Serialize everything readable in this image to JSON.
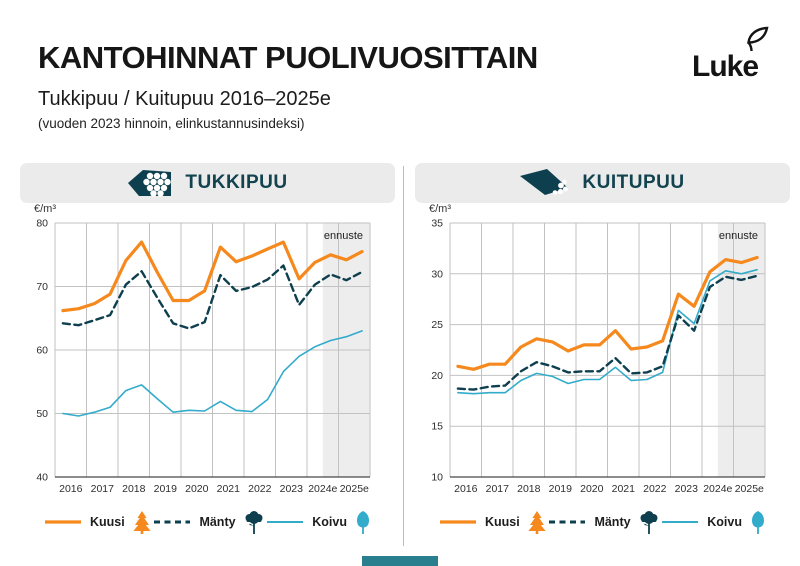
{
  "page": {
    "title": "KANTOHINNAT PUOLIVUOSITTAIN",
    "subtitle": "Tukkipuu / Kuitupuu 2016–2025e",
    "note": "(vuoden 2023 hinnoin, elinkustannusindeksi)",
    "logo_text": "Luke"
  },
  "colors": {
    "kuusi": "#F5891E",
    "manty": "#0E3F4E",
    "koivu": "#33ABCB",
    "panel_header_bg": "#EBEBEB",
    "panel_header_text": "#12434F",
    "forecast_bg": "#EDEDED",
    "grid": "#C2C2C2",
    "axis": "#474747",
    "footer_bar": "#2A7F8E",
    "logo_ink": "#141414"
  },
  "legend": {
    "items": [
      {
        "label": "Kuusi",
        "key": "kuusi",
        "icon": "spruce-tree-icon",
        "line": "solid"
      },
      {
        "label": "Mänty",
        "key": "manty",
        "icon": "pine-tree-icon",
        "line": "dashed"
      },
      {
        "label": "Koivu",
        "key": "koivu",
        "icon": "birch-tree-icon",
        "line": "solid"
      }
    ]
  },
  "chart_data": [
    {
      "type": "line",
      "title": "TUKKIPUU",
      "unit_label": "€/m³",
      "forecast_label": "ennuste",
      "x_tick_labels": [
        "2016",
        "2017",
        "2018",
        "2019",
        "2020",
        "2021",
        "2022",
        "2023",
        "2024e",
        "2025e"
      ],
      "points_per_year": 2,
      "y_ticks": [
        40,
        50,
        60,
        70,
        80
      ],
      "ylim": [
        40,
        80
      ],
      "grid": true,
      "forecast_start_fraction": 0.85,
      "series": [
        {
          "name": "Kuusi",
          "key": "kuusi",
          "color": "#F5891E",
          "line": "solid",
          "width": 3.2,
          "values": [
            66.2,
            66.5,
            67.3,
            68.8,
            74.1,
            77.0,
            72.2,
            67.8,
            67.8,
            69.3,
            76.2,
            73.9,
            74.8,
            75.9,
            77.0,
            71.2,
            73.8,
            75.0,
            74.2,
            75.5
          ]
        },
        {
          "name": "Mänty",
          "key": "manty",
          "color": "#0E3F4E",
          "line": "dashed",
          "width": 2.4,
          "values": [
            64.2,
            63.9,
            64.7,
            65.5,
            70.3,
            72.4,
            68.2,
            64.2,
            63.4,
            64.4,
            71.8,
            69.3,
            69.9,
            71.1,
            73.3,
            67.1,
            70.3,
            71.9,
            71.0,
            72.3
          ]
        },
        {
          "name": "Koivu",
          "key": "koivu",
          "color": "#33ABCB",
          "line": "solid",
          "width": 1.6,
          "values": [
            50.0,
            49.6,
            50.2,
            51.0,
            53.6,
            54.5,
            52.3,
            50.2,
            50.5,
            50.4,
            51.9,
            50.5,
            50.3,
            52.2,
            56.6,
            59.0,
            60.5,
            61.5,
            62.1,
            63.0
          ]
        }
      ]
    },
    {
      "type": "line",
      "title": "KUITUPUU",
      "unit_label": "€/m³",
      "forecast_label": "ennuste",
      "x_tick_labels": [
        "2016",
        "2017",
        "2018",
        "2019",
        "2020",
        "2021",
        "2022",
        "2023",
        "2024e",
        "2025e"
      ],
      "points_per_year": 2,
      "y_ticks": [
        10,
        15,
        20,
        25,
        30,
        35
      ],
      "ylim": [
        10,
        35
      ],
      "grid": true,
      "forecast_start_fraction": 0.85,
      "series": [
        {
          "name": "Kuusi",
          "key": "kuusi",
          "color": "#F5891E",
          "line": "solid",
          "width": 3.2,
          "values": [
            20.9,
            20.6,
            21.1,
            21.1,
            22.8,
            23.6,
            23.3,
            22.4,
            23.0,
            23.0,
            24.4,
            22.6,
            22.8,
            23.4,
            28.0,
            26.8,
            30.2,
            31.4,
            31.1,
            31.6
          ]
        },
        {
          "name": "Mänty",
          "key": "manty",
          "color": "#0E3F4E",
          "line": "dashed",
          "width": 2.4,
          "values": [
            18.7,
            18.6,
            18.9,
            19.0,
            20.4,
            21.3,
            20.9,
            20.3,
            20.4,
            20.4,
            21.7,
            20.2,
            20.3,
            20.9,
            25.9,
            24.4,
            28.7,
            29.7,
            29.4,
            29.8
          ]
        },
        {
          "name": "Koivu",
          "key": "koivu",
          "color": "#33ABCB",
          "line": "solid",
          "width": 1.6,
          "values": [
            18.3,
            18.2,
            18.3,
            18.3,
            19.5,
            20.2,
            19.9,
            19.2,
            19.6,
            19.6,
            20.8,
            19.5,
            19.6,
            20.3,
            26.4,
            25.1,
            29.3,
            30.3,
            30.0,
            30.4
          ]
        }
      ]
    }
  ]
}
